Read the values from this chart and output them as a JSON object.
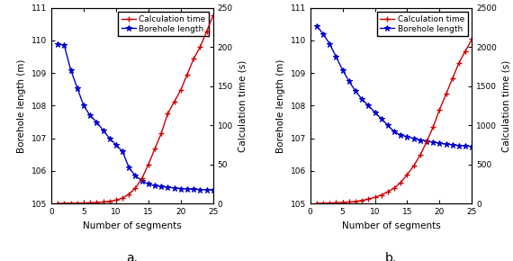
{
  "segments": [
    1,
    2,
    3,
    4,
    5,
    6,
    7,
    8,
    9,
    10,
    11,
    12,
    13,
    14,
    15,
    16,
    17,
    18,
    19,
    20,
    21,
    22,
    23,
    24,
    25
  ],
  "borehole_a": [
    109.9,
    109.85,
    109.1,
    108.55,
    108.0,
    107.7,
    107.5,
    107.25,
    107.0,
    106.8,
    106.6,
    106.1,
    105.85,
    105.7,
    105.6,
    105.55,
    105.52,
    105.5,
    105.48,
    105.46,
    105.45,
    105.44,
    105.43,
    105.42,
    105.42
  ],
  "calctime_a": [
    0.3,
    0.4,
    0.5,
    0.6,
    0.8,
    1.0,
    1.5,
    2.0,
    3.0,
    4.5,
    7.0,
    12.0,
    20.0,
    32.0,
    50.0,
    70.0,
    90.0,
    115.0,
    130.0,
    145.0,
    165.0,
    185.0,
    200.0,
    220.0,
    240.0
  ],
  "borehole_b": [
    110.45,
    110.2,
    109.9,
    109.5,
    109.1,
    108.75,
    108.45,
    108.2,
    108.0,
    107.8,
    107.6,
    107.4,
    107.2,
    107.1,
    107.05,
    107.0,
    106.95,
    106.92,
    106.88,
    106.85,
    106.82,
    106.8,
    106.78,
    106.77,
    106.75
  ],
  "calctime_b": [
    3,
    5,
    7,
    10,
    14,
    20,
    28,
    40,
    58,
    80,
    110,
    150,
    200,
    270,
    370,
    480,
    620,
    790,
    980,
    1200,
    1400,
    1600,
    1800,
    1950,
    2100
  ],
  "ylim_borehole": [
    105,
    111
  ],
  "ylim_calctime_a": [
    0,
    250
  ],
  "ylim_calctime_b": [
    0,
    2500
  ],
  "yticks_borehole": [
    105,
    106,
    107,
    108,
    109,
    110,
    111
  ],
  "yticks_calctime_a": [
    0,
    50,
    100,
    150,
    200,
    250
  ],
  "yticks_calctime_b": [
    0,
    500,
    1000,
    1500,
    2000,
    2500
  ],
  "xlabel": "Number of segments",
  "ylabel_left": "Borehole length (m)",
  "ylabel_right": "Calculation time (s)",
  "xlim": [
    0,
    25
  ],
  "xticks": [
    0,
    5,
    10,
    15,
    20,
    25
  ],
  "color_calctime": "#cc0000",
  "color_borehole": "#0000cc",
  "label_calctime": "Calculation time",
  "label_borehole": "Borehole length",
  "label_a": "a.",
  "label_b": "b.",
  "legend_fontsize": 6.5,
  "axis_label_fontsize": 7.5,
  "tick_fontsize": 6.5,
  "sublabel_fontsize": 10
}
